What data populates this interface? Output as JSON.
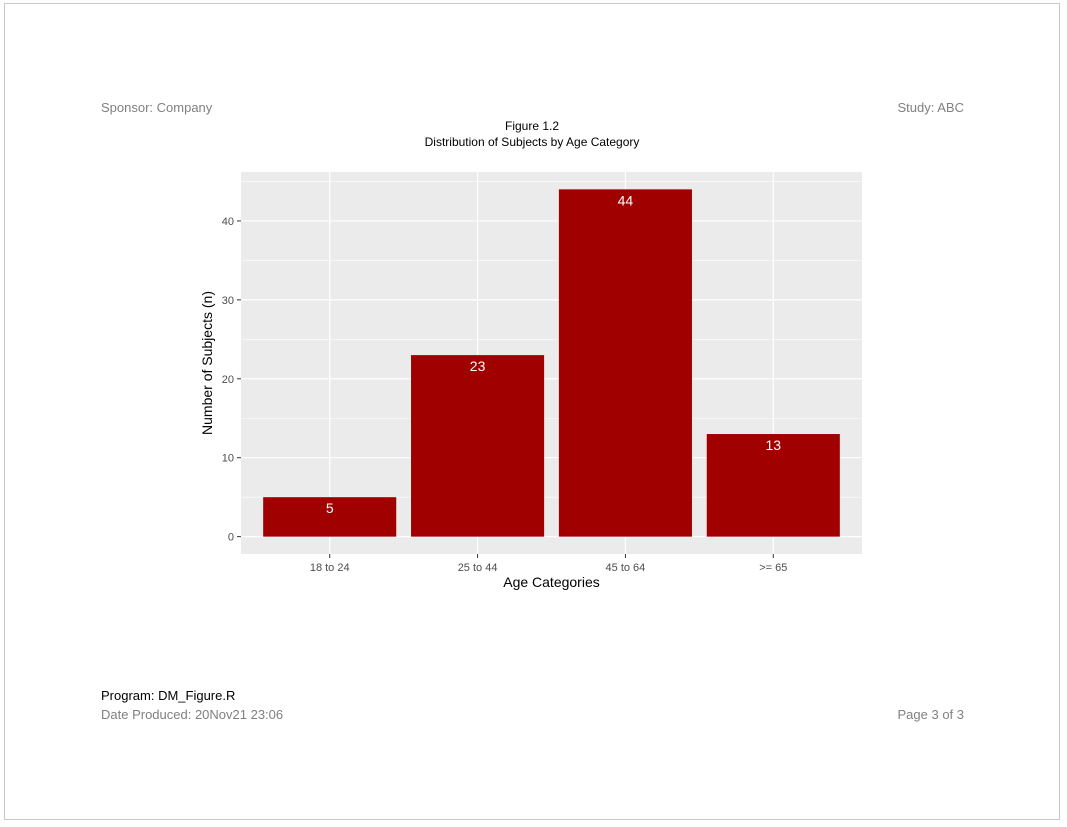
{
  "header": {
    "sponsor": "Sponsor: Company",
    "study": "Study: ABC"
  },
  "footer": {
    "program": "Program: DM_Figure.R",
    "date_produced": "Date Produced: 20Nov21 23:06",
    "page": "Page  3  of  3"
  },
  "colors": {
    "bar": "#a00000",
    "panel": "#ebebeb",
    "grid": "#ffffff",
    "label": "#ffffff"
  },
  "chart_data": {
    "type": "bar",
    "title": "Figure 1.2",
    "subtitle": "Distribution of Subjects by Age Category",
    "xlabel": "Age Categories",
    "ylabel": "Number of Subjects (n)",
    "categories": [
      "18 to 24",
      "25 to 44",
      "45 to 64",
      ">= 65"
    ],
    "values": [
      5,
      23,
      44,
      13
    ],
    "data_labels": [
      "5",
      "23",
      "44",
      "13"
    ],
    "yticks": [
      0,
      10,
      20,
      30,
      40
    ],
    "ylim": [
      -2.2,
      46.2
    ],
    "grid": true,
    "legend": "none"
  }
}
